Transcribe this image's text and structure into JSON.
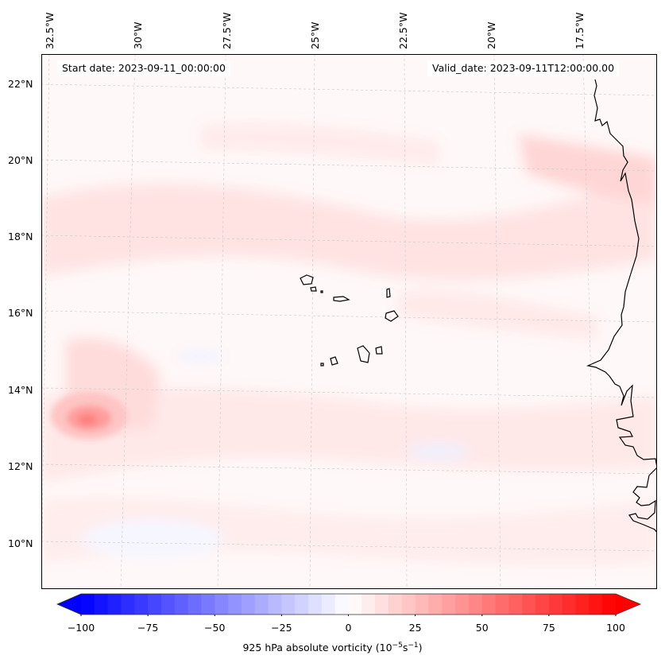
{
  "map": {
    "start_date": "Start date: 2023-09-11_00:00:00",
    "valid_date": "Valid_date: 2023-09-11T12:00:00.00",
    "longitude_labels": [
      "32.5°W",
      "30°W",
      "27.5°W",
      "25°W",
      "22.5°W",
      "20°W",
      "17.5°W"
    ],
    "latitude_labels": [
      "22°N",
      "20°N",
      "18°N",
      "16°N",
      "14°N",
      "12°N",
      "10°N"
    ],
    "features": [
      "vorticity-maximum",
      "cape-verde-islands",
      "west-africa-coastline"
    ]
  },
  "colorbar": {
    "label": "925 hPa absolute vorticity (10",
    "label_exp1": "−5",
    "label_mid": "s",
    "label_exp2": "−1",
    "label_end": ")",
    "ticks": [
      "−100",
      "−75",
      "−50",
      "−25",
      "0",
      "25",
      "50",
      "75",
      "100"
    ],
    "min": -100,
    "max": 100,
    "colors": {
      "low": "#0000ff",
      "mid": "#ffffff",
      "high": "#ff0000"
    }
  }
}
